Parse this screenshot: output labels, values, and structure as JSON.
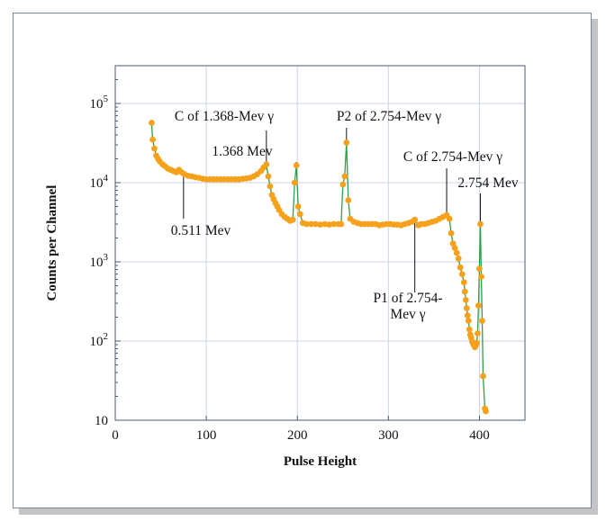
{
  "chart_data": {
    "type": "scatter",
    "xlabel": "Pulse Height",
    "ylabel": "Counts per Channel",
    "xlim": [
      0,
      450
    ],
    "ylim": [
      10,
      300000
    ],
    "y_scale": "log",
    "x_ticks": [
      0,
      100,
      200,
      300,
      400
    ],
    "y_tick_labels": [
      "10",
      "10^2",
      "10^3",
      "10^4",
      "10^5"
    ],
    "grid": true,
    "series": [
      {
        "color": "#f5a11c",
        "line_color": "#2ea043",
        "points": [
          [
            40,
            57000
          ],
          [
            41,
            35000
          ],
          [
            43,
            27000
          ],
          [
            45,
            22000
          ],
          [
            47,
            20000
          ],
          [
            49,
            18500
          ],
          [
            52,
            17000
          ],
          [
            55,
            16000
          ],
          [
            58,
            15000
          ],
          [
            61,
            14500
          ],
          [
            64,
            14000
          ],
          [
            67,
            13500
          ],
          [
            70,
            14500
          ],
          [
            73,
            13500
          ],
          [
            76,
            12800
          ],
          [
            80,
            12200
          ],
          [
            84,
            12000
          ],
          [
            88,
            11700
          ],
          [
            92,
            11500
          ],
          [
            96,
            11200
          ],
          [
            100,
            11000
          ],
          [
            104,
            11000
          ],
          [
            108,
            11000
          ],
          [
            112,
            11000
          ],
          [
            116,
            11000
          ],
          [
            120,
            11000
          ],
          [
            124,
            11000
          ],
          [
            128,
            11000
          ],
          [
            132,
            11000
          ],
          [
            136,
            11000
          ],
          [
            140,
            11200
          ],
          [
            144,
            11300
          ],
          [
            148,
            11500
          ],
          [
            152,
            12000
          ],
          [
            156,
            12800
          ],
          [
            160,
            14000
          ],
          [
            163,
            15500
          ],
          [
            166,
            17000
          ],
          [
            168,
            12000
          ],
          [
            170,
            9000
          ],
          [
            172,
            7000
          ],
          [
            174,
            6200
          ],
          [
            176,
            5500
          ],
          [
            178,
            5000
          ],
          [
            180,
            4500
          ],
          [
            183,
            4000
          ],
          [
            186,
            3700
          ],
          [
            189,
            3500
          ],
          [
            192,
            3300
          ],
          [
            195,
            3400
          ],
          [
            197,
            10000
          ],
          [
            199,
            16500
          ],
          [
            201,
            5000
          ],
          [
            203,
            4000
          ],
          [
            206,
            3100
          ],
          [
            210,
            3000
          ],
          [
            215,
            3000
          ],
          [
            220,
            3000
          ],
          [
            225,
            2950
          ],
          [
            230,
            3000
          ],
          [
            235,
            2950
          ],
          [
            240,
            3000
          ],
          [
            245,
            3000
          ],
          [
            248,
            3000
          ],
          [
            250,
            9500
          ],
          [
            252,
            12000
          ],
          [
            254,
            32000
          ],
          [
            256,
            6000
          ],
          [
            258,
            3500
          ],
          [
            262,
            3200
          ],
          [
            266,
            3100
          ],
          [
            270,
            3000
          ],
          [
            274,
            3000
          ],
          [
            278,
            3000
          ],
          [
            282,
            3000
          ],
          [
            286,
            3000
          ],
          [
            290,
            2900
          ],
          [
            294,
            2950
          ],
          [
            298,
            3000
          ],
          [
            302,
            3000
          ],
          [
            306,
            2950
          ],
          [
            310,
            2950
          ],
          [
            314,
            2900
          ],
          [
            318,
            3000
          ],
          [
            322,
            3100
          ],
          [
            326,
            3200
          ],
          [
            329,
            3400
          ],
          [
            333,
            2900
          ],
          [
            336,
            3000
          ],
          [
            340,
            3000
          ],
          [
            344,
            3100
          ],
          [
            348,
            3200
          ],
          [
            352,
            3300
          ],
          [
            356,
            3500
          ],
          [
            360,
            3700
          ],
          [
            364,
            3900
          ],
          [
            367,
            3500
          ],
          [
            369,
            2300
          ],
          [
            371,
            1700
          ],
          [
            373,
            1500
          ],
          [
            375,
            1300
          ],
          [
            377,
            1100
          ],
          [
            379,
            850
          ],
          [
            381,
            700
          ],
          [
            383,
            550
          ],
          [
            384,
            420
          ],
          [
            385,
            330
          ],
          [
            386,
            260
          ],
          [
            387,
            210
          ],
          [
            388,
            180
          ],
          [
            389,
            140
          ],
          [
            390,
            120
          ],
          [
            391,
            110
          ],
          [
            392,
            98
          ],
          [
            393,
            93
          ],
          [
            394,
            88
          ],
          [
            395,
            84
          ],
          [
            396,
            88
          ],
          [
            397,
            95
          ],
          [
            398,
            125
          ],
          [
            399,
            280
          ],
          [
            400,
            820
          ],
          [
            401,
            3000
          ],
          [
            402,
            650
          ],
          [
            403,
            180
          ],
          [
            404,
            36
          ],
          [
            406,
            14
          ],
          [
            407,
            13
          ]
        ]
      }
    ],
    "annotations": [
      {
        "text": "0.511 Mev",
        "x": 75,
        "y": 12800
      },
      {
        "text": "C of 1.368-Mev γ",
        "x": 166,
        "y": 17000
      },
      {
        "text": "1.368 Mev",
        "x": 199,
        "y": 16500
      },
      {
        "text": "P2 of 2.754-Mev γ",
        "x": 254,
        "y": 32000
      },
      {
        "text": "C of 2.754-Mev γ",
        "x": 364,
        "y": 3900
      },
      {
        "text": "2.754 Mev",
        "x": 401,
        "y": 3000
      },
      {
        "text": "P1 of 2.754-\nMev γ",
        "x": 329,
        "y": 3300
      }
    ]
  }
}
